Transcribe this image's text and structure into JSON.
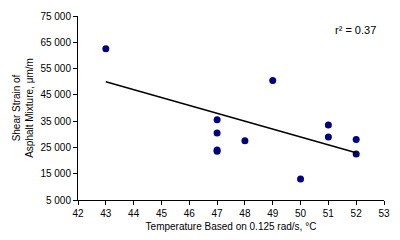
{
  "chart_data": {
    "type": "scatter",
    "x_label": "Temperature Based on 0.125 rad/s, °C",
    "y_label": "Shear Strain of\nAsphalt Mixture, μm/m",
    "annotations": [
      "r² = 0.37"
    ],
    "xlim": [
      42,
      53
    ],
    "xticks": [
      42,
      43,
      44,
      45,
      46,
      47,
      48,
      49,
      50,
      51,
      52,
      53
    ],
    "ylim": [
      5000,
      75000
    ],
    "yticks": [
      {
        "value": 5000,
        "label": "5 000"
      },
      {
        "value": 15000,
        "label": "15 000"
      },
      {
        "value": 25000,
        "label": "25 000"
      },
      {
        "value": 35000,
        "label": "35 000"
      },
      {
        "value": 45000,
        "label": "45 000"
      },
      {
        "value": 55000,
        "label": "55 000"
      },
      {
        "value": 65000,
        "label": "65 000"
      },
      {
        "value": 75000,
        "label": "75 000"
      }
    ],
    "grid": false,
    "series": [
      {
        "type": "scatter",
        "marker": "circle",
        "color": "#000080",
        "x": [
          43,
          47,
          47,
          47,
          47,
          48,
          49,
          50,
          51,
          51,
          52,
          52
        ],
        "values": [
          62500,
          35500,
          30500,
          24000,
          23500,
          27500,
          50500,
          13000,
          33500,
          29000,
          28000,
          22500
        ]
      },
      {
        "type": "line",
        "line_style": "solid",
        "color": "#000000",
        "x": [
          43,
          52
        ],
        "values": [
          50000,
          23000
        ]
      }
    ]
  }
}
